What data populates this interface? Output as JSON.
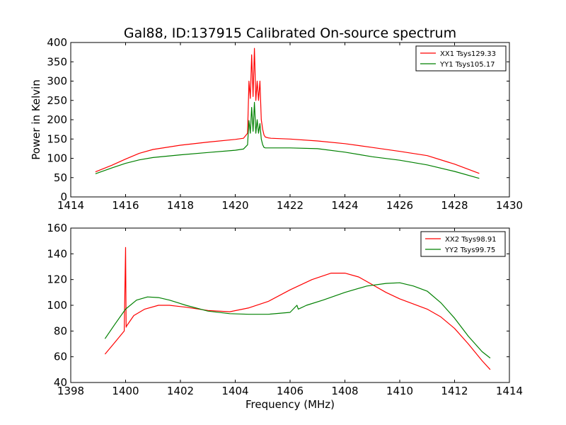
{
  "title": "Gal88, ID:137915 Calibrated On-source spectrum",
  "chart_data": [
    {
      "type": "line",
      "title": "Gal88, ID:137915 Calibrated On-source spectrum",
      "xlabel": "",
      "ylabel": "Power in Kelvin",
      "xlim": [
        1414,
        1430
      ],
      "ylim": [
        0,
        400
      ],
      "xticks": [
        1414,
        1416,
        1418,
        1420,
        1422,
        1424,
        1426,
        1428,
        1430
      ],
      "yticks": [
        0,
        50,
        100,
        150,
        200,
        250,
        300,
        350,
        400
      ],
      "grid": false,
      "legend": "top-right",
      "series": [
        {
          "name": "XX1 Tsys129.33",
          "color": "#ff0000",
          "x": [
            1414.9,
            1415.5,
            1416,
            1416.5,
            1417,
            1418,
            1419,
            1420,
            1420.3,
            1420.45,
            1420.5,
            1420.55,
            1420.6,
            1420.65,
            1420.7,
            1420.75,
            1420.8,
            1420.85,
            1420.9,
            1420.95,
            1421.0,
            1421.05,
            1421.1,
            1421.2,
            1421.3,
            1422,
            1423,
            1424,
            1425,
            1426,
            1427,
            1428,
            1428.9
          ],
          "y": [
            65,
            82,
            98,
            113,
            123,
            134,
            142,
            149,
            152,
            165,
            300,
            255,
            368,
            260,
            385,
            250,
            300,
            250,
            300,
            200,
            175,
            160,
            155,
            153,
            152,
            150,
            145,
            138,
            128,
            118,
            107,
            85,
            61
          ]
        },
        {
          "name": "YY1 Tsys105.17",
          "color": "#008000",
          "x": [
            1414.9,
            1415.5,
            1416,
            1416.5,
            1417,
            1418,
            1419,
            1420,
            1420.3,
            1420.45,
            1420.5,
            1420.55,
            1420.6,
            1420.65,
            1420.7,
            1420.75,
            1420.8,
            1420.85,
            1420.9,
            1420.95,
            1421.0,
            1421.05,
            1421.1,
            1421.2,
            1421.3,
            1422,
            1423,
            1424,
            1425,
            1426,
            1427,
            1428,
            1428.9
          ],
          "y": [
            60,
            75,
            87,
            96,
            102,
            109,
            115,
            121,
            124,
            135,
            198,
            165,
            232,
            170,
            245,
            165,
            200,
            165,
            190,
            150,
            135,
            128,
            127,
            127,
            127,
            127,
            125,
            116,
            104,
            95,
            83,
            66,
            48
          ]
        }
      ]
    },
    {
      "type": "line",
      "title": "",
      "xlabel": "Frequency (MHz)",
      "ylabel": "",
      "xlim": [
        1398,
        1414
      ],
      "ylim": [
        40,
        160
      ],
      "xticks": [
        1398,
        1400,
        1402,
        1404,
        1406,
        1408,
        1410,
        1412,
        1414
      ],
      "yticks": [
        40,
        60,
        80,
        100,
        120,
        140,
        160
      ],
      "grid": false,
      "legend": "top-right",
      "series": [
        {
          "name": "XX2 Tsys98.91",
          "color": "#ff0000",
          "x": [
            1399.25,
            1399.6,
            1399.95,
            1400.0,
            1400.02,
            1400.04,
            1400.3,
            1400.7,
            1401.2,
            1401.6,
            1402.2,
            1403,
            1403.8,
            1404.5,
            1405.2,
            1406,
            1406.8,
            1407.5,
            1408,
            1408.5,
            1409,
            1409.5,
            1410,
            1410.5,
            1411,
            1411.5,
            1412,
            1412.5,
            1413,
            1413.3
          ],
          "y": [
            62,
            71,
            80,
            145,
            83,
            84,
            92,
            97,
            100,
            100,
            98.5,
            96,
            95,
            98,
            103,
            112,
            120,
            125,
            125,
            122,
            116,
            110,
            105,
            101,
            97,
            91,
            82,
            70,
            57,
            50
          ]
        },
        {
          "name": "YY2 Tsys99.75",
          "color": "#008000",
          "x": [
            1399.25,
            1399.6,
            1400.0,
            1400.4,
            1400.8,
            1401.2,
            1401.6,
            1402.2,
            1403,
            1403.8,
            1404.5,
            1405.2,
            1406,
            1406.25,
            1406.3,
            1406.6,
            1407.2,
            1408,
            1408.8,
            1409.5,
            1410,
            1410.5,
            1411,
            1411.5,
            1412,
            1412.5,
            1413,
            1413.3
          ],
          "y": [
            74,
            85,
            97,
            104,
            106.5,
            106,
            104,
            100,
            95.5,
            93.5,
            93,
            93,
            94.5,
            100,
            97,
            100,
            104,
            110,
            115,
            117,
            117.5,
            115,
            111,
            102,
            90,
            76,
            64,
            59
          ]
        }
      ]
    }
  ]
}
